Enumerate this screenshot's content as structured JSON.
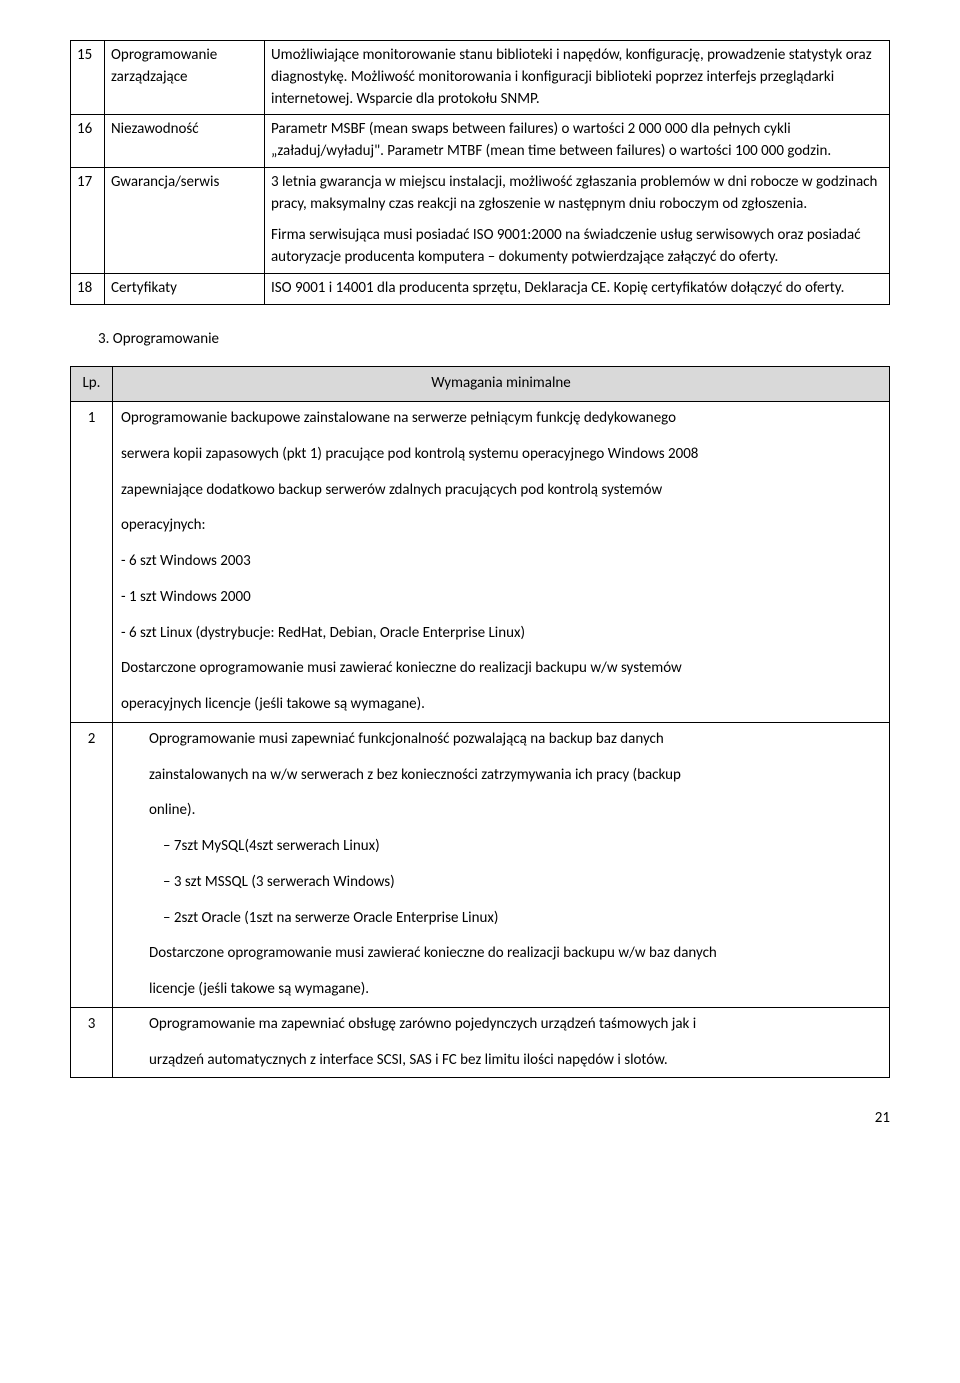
{
  "specTable": {
    "rows": [
      {
        "num": "15",
        "name": "Oprogramowanie zarządzające",
        "desc": [
          "Umożliwiające monitorowanie stanu biblioteki i napędów, konfigurację, prowadzenie statystyk oraz diagnostykę. Możliwość monitorowania i konfiguracji biblioteki poprzez interfejs przeglądarki internetowej. Wsparcie dla protokołu SNMP."
        ]
      },
      {
        "num": "16",
        "name": "Niezawodność",
        "desc": [
          "Parametr MSBF (mean swaps between failures) o wartości 2 000 000 dla pełnych cykli „załaduj/wyładuj\". Parametr MTBF (mean time between failures) o wartości 100 000 godzin."
        ]
      },
      {
        "num": "17",
        "name": "Gwarancja/serwis",
        "desc": [
          "3 letnia gwarancja w miejscu instalacji, możliwość zgłaszania problemów w dni robocze w godzinach pracy, maksymalny czas reakcji na zgłoszenie w następnym dniu roboczym od zgłoszenia.",
          "Firma serwisująca musi posiadać ISO 9001:2000 na świadczenie usług serwisowych oraz posiadać autoryzacje producenta komputera – dokumenty potwierdzające załączyć do oferty."
        ]
      },
      {
        "num": "18",
        "name": "Certyfikaty",
        "desc": [
          "ISO 9001 i 14001 dla producenta sprzętu, Deklaracja CE. Kopię certyfikatów dołączyć do oferty."
        ]
      }
    ]
  },
  "sectionTitle": "3. Oprogramowanie",
  "reqTable": {
    "header": {
      "lp": "Lp.",
      "wm": "Wymagania minimalne"
    },
    "rows": [
      {
        "lp": "1",
        "paras": [
          {
            "text": "Oprogramowanie backupowe zainstalowane na serwerze pełniącym funkcję dedykowanego",
            "indent": 0
          },
          {
            "text": "serwera kopii zapasowych (pkt 1) pracujące pod kontrolą systemu operacyjnego Windows 2008",
            "indent": 0
          },
          {
            "text": "zapewniające dodatkowo backup serwerów zdalnych pracujących pod kontrolą systemów",
            "indent": 0
          },
          {
            "text": "operacyjnych:",
            "indent": 0
          },
          {
            "text": "- 6 szt Windows 2003",
            "indent": 0
          },
          {
            "text": "- 1 szt Windows 2000",
            "indent": 0
          },
          {
            "text": "- 6 szt Linux (dystrybucje: RedHat, Debian, Oracle Enterprise Linux)",
            "indent": 0
          },
          {
            "text": "Dostarczone oprogramowanie musi zawierać konieczne do realizacji backupu w/w systemów",
            "indent": 0
          },
          {
            "text": "operacyjnych licencje (jeśli takowe są wymagane).",
            "indent": 0
          }
        ]
      },
      {
        "lp": "2",
        "paras": [
          {
            "text": "Oprogramowanie musi zapewniać funkcjonalność pozwalającą na backup baz danych",
            "indent": 1
          },
          {
            "text": "zainstalowanych na w/w serwerach z bez konieczności zatrzymywania ich pracy (backup",
            "indent": 1
          },
          {
            "text": "online).",
            "indent": 1
          },
          {
            "text": "–   7szt MySQL(4szt serwerach Linux)",
            "indent": 2
          },
          {
            "text": "–   3 szt MSSQL (3 serwerach Windows)",
            "indent": 2
          },
          {
            "text": "–   2szt Oracle (1szt na serwerze Oracle Enterprise Linux)",
            "indent": 2
          },
          {
            "text": "Dostarczone oprogramowanie musi zawierać konieczne do realizacji backupu w/w baz danych",
            "indent": 1
          },
          {
            "text": "licencje (jeśli takowe są wymagane).",
            "indent": 1
          }
        ]
      },
      {
        "lp": "3",
        "paras": [
          {
            "text": "Oprogramowanie ma zapewniać obsługę zarówno pojedynczych urządzeń taśmowych jak i",
            "indent": 1
          },
          {
            "text": "urządzeń automatycznych z interface SCSI, SAS i FC bez limitu ilości napędów i slotów.",
            "indent": 1
          }
        ]
      }
    ]
  },
  "pageNumber": "21"
}
